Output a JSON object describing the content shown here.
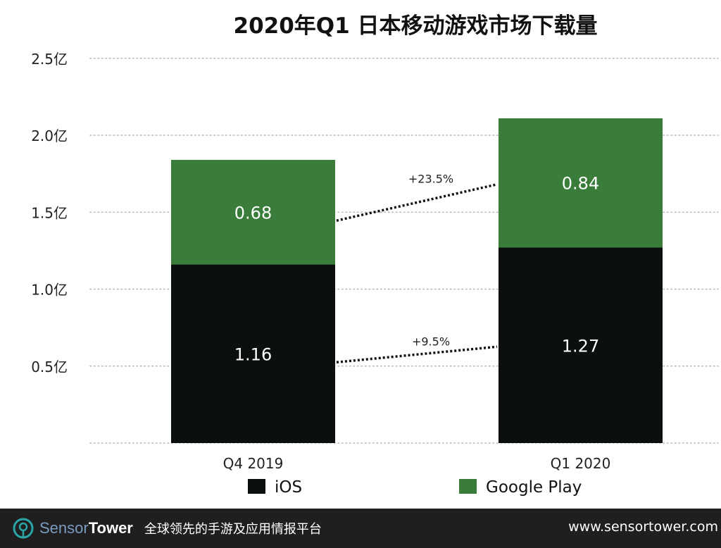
{
  "chart_data": {
    "type": "bar",
    "stacked": true,
    "title": "2020年Q1 日本移动游戏市场下载量",
    "categories": [
      "Q4  2019",
      "Q1 2020"
    ],
    "series": [
      {
        "name": "iOS",
        "values": [
          1.16,
          1.27
        ],
        "color": "#0b0f10"
      },
      {
        "name": "Google Play",
        "values": [
          0.68,
          0.84
        ],
        "color": "#3a7d3a"
      }
    ],
    "value_labels": [
      [
        "1.16",
        "1.27"
      ],
      [
        "0.68",
        "0.84"
      ]
    ],
    "ylim": [
      0,
      2.5
    ],
    "yticks": [
      0,
      0.5,
      1.0,
      1.5,
      2.0,
      2.5
    ],
    "ytick_labels": [
      "",
      "0.5亿",
      "1.0亿",
      "1.5亿",
      "2.0亿",
      "2.5亿"
    ],
    "xlabel": "",
    "ylabel": "",
    "grid": "dotted horizontal",
    "legend": {
      "position": "bottom",
      "entries": [
        "iOS",
        "Google Play"
      ]
    },
    "annotations": [
      {
        "series": "Google Play",
        "text": "+23.5%"
      },
      {
        "series": "iOS",
        "text": "+9.5%"
      }
    ]
  },
  "footer": {
    "brand_part1": "Sensor",
    "brand_part2": "Tower",
    "tagline": "全球领先的手游及应用情报平台",
    "website": "www.sensortower.com"
  }
}
